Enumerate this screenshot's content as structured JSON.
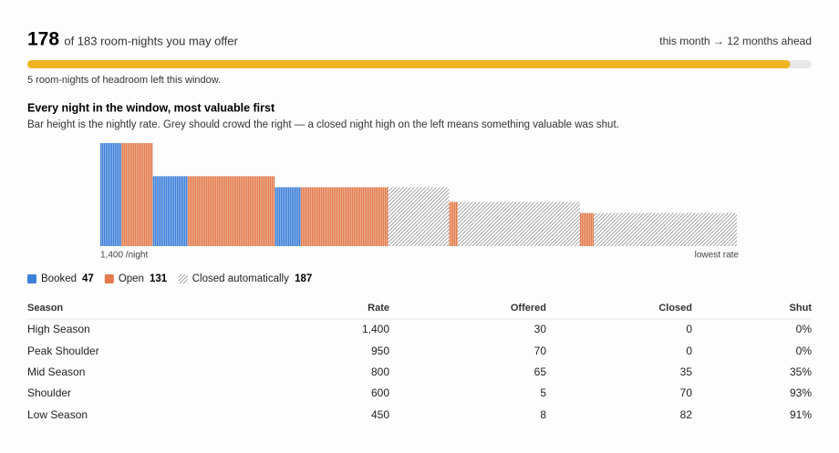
{
  "header": {
    "count": 178,
    "rest": "of 183 room-nights you may offer",
    "capacity": 183,
    "range": "this month → 12 months ahead",
    "headroom": "5 room-nights of headroom left this window.",
    "bar_color": "#f0b322"
  },
  "chart": {
    "title": "Every night in the window, most valuable first",
    "subtitle": "Bar height is the nightly rate. Grey should crowd the right — a closed night high on the left means something valuable was shut.",
    "top_label": "1,400 /night",
    "bottom_label": "lowest rate",
    "ylim": [
      0,
      1400
    ],
    "rates": [
      1400,
      950,
      800,
      600,
      450
    ],
    "series": [
      {
        "name": "Booked",
        "total": 47,
        "color": "#3d7fd8",
        "style": "stripes",
        "values": [
          12,
          20,
          15,
          0,
          0
        ]
      },
      {
        "name": "Open",
        "total": 131,
        "color": "#e27a4b",
        "style": "stripes",
        "values": [
          18,
          50,
          50,
          5,
          8
        ]
      },
      {
        "name": "Closed automatically",
        "total": 187,
        "color": "#9a9a9a",
        "style": "hatch",
        "values": [
          0,
          0,
          35,
          70,
          82
        ]
      }
    ]
  },
  "table": {
    "columns": [
      "Season",
      "Rate",
      "Offered",
      "Closed",
      "Shut"
    ],
    "rows": [
      [
        "High Season",
        "1,400",
        "30",
        "0",
        "0%"
      ],
      [
        "Peak Shoulder",
        "950",
        "70",
        "0",
        "0%"
      ],
      [
        "Mid Season",
        "800",
        "65",
        "35",
        "35%"
      ],
      [
        "Shoulder",
        "600",
        "5",
        "70",
        "93%"
      ],
      [
        "Low Season",
        "450",
        "8",
        "82",
        "91%"
      ]
    ]
  }
}
